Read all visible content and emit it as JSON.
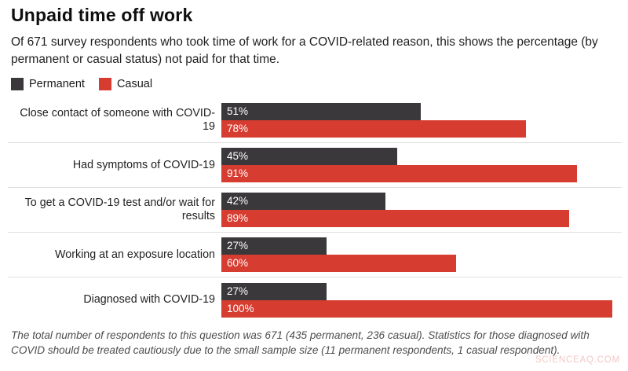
{
  "title": "Unpaid time off work",
  "subtitle": "Of 671 survey respondents who took time of work for a COVID-related reason, this shows the percentage (by permanent or casual status) not paid for that time.",
  "legend": [
    {
      "label": "Permanent",
      "color": "#3b383c"
    },
    {
      "label": "Casual",
      "color": "#d63c30"
    }
  ],
  "chart_data": {
    "type": "bar",
    "orientation": "horizontal",
    "title": "Unpaid time off work",
    "xlim": [
      0,
      100
    ],
    "value_suffix": "%",
    "grid": false,
    "legend_position": "top-left",
    "value_labels": "inside-left",
    "categories": [
      "Close contact of someone with COVID-19",
      "Had symptoms of COVID-19",
      "To get a COVID-19 test and/or wait for results",
      "Working at an exposure location",
      "Diagnosed with COVID-19"
    ],
    "series": [
      {
        "name": "Permanent",
        "color": "#3b383c",
        "values": [
          51,
          45,
          42,
          27,
          27
        ]
      },
      {
        "name": "Casual",
        "color": "#d63c30",
        "values": [
          78,
          91,
          89,
          60,
          100
        ]
      }
    ]
  },
  "footnote": "The total number of respondents to this question was 671 (435 permanent, 236 casual). Statistics for those diagnosed with COVID should be treated cautiously due to the small sample size (11 permanent respondents, 1 casual respondent).",
  "watermark": "SCIENCEAQ.COM",
  "colors": {
    "permanent": "#3b383c",
    "casual": "#d63c30",
    "divider": "#e0e0e0",
    "watermark": "#f2c9c6"
  }
}
